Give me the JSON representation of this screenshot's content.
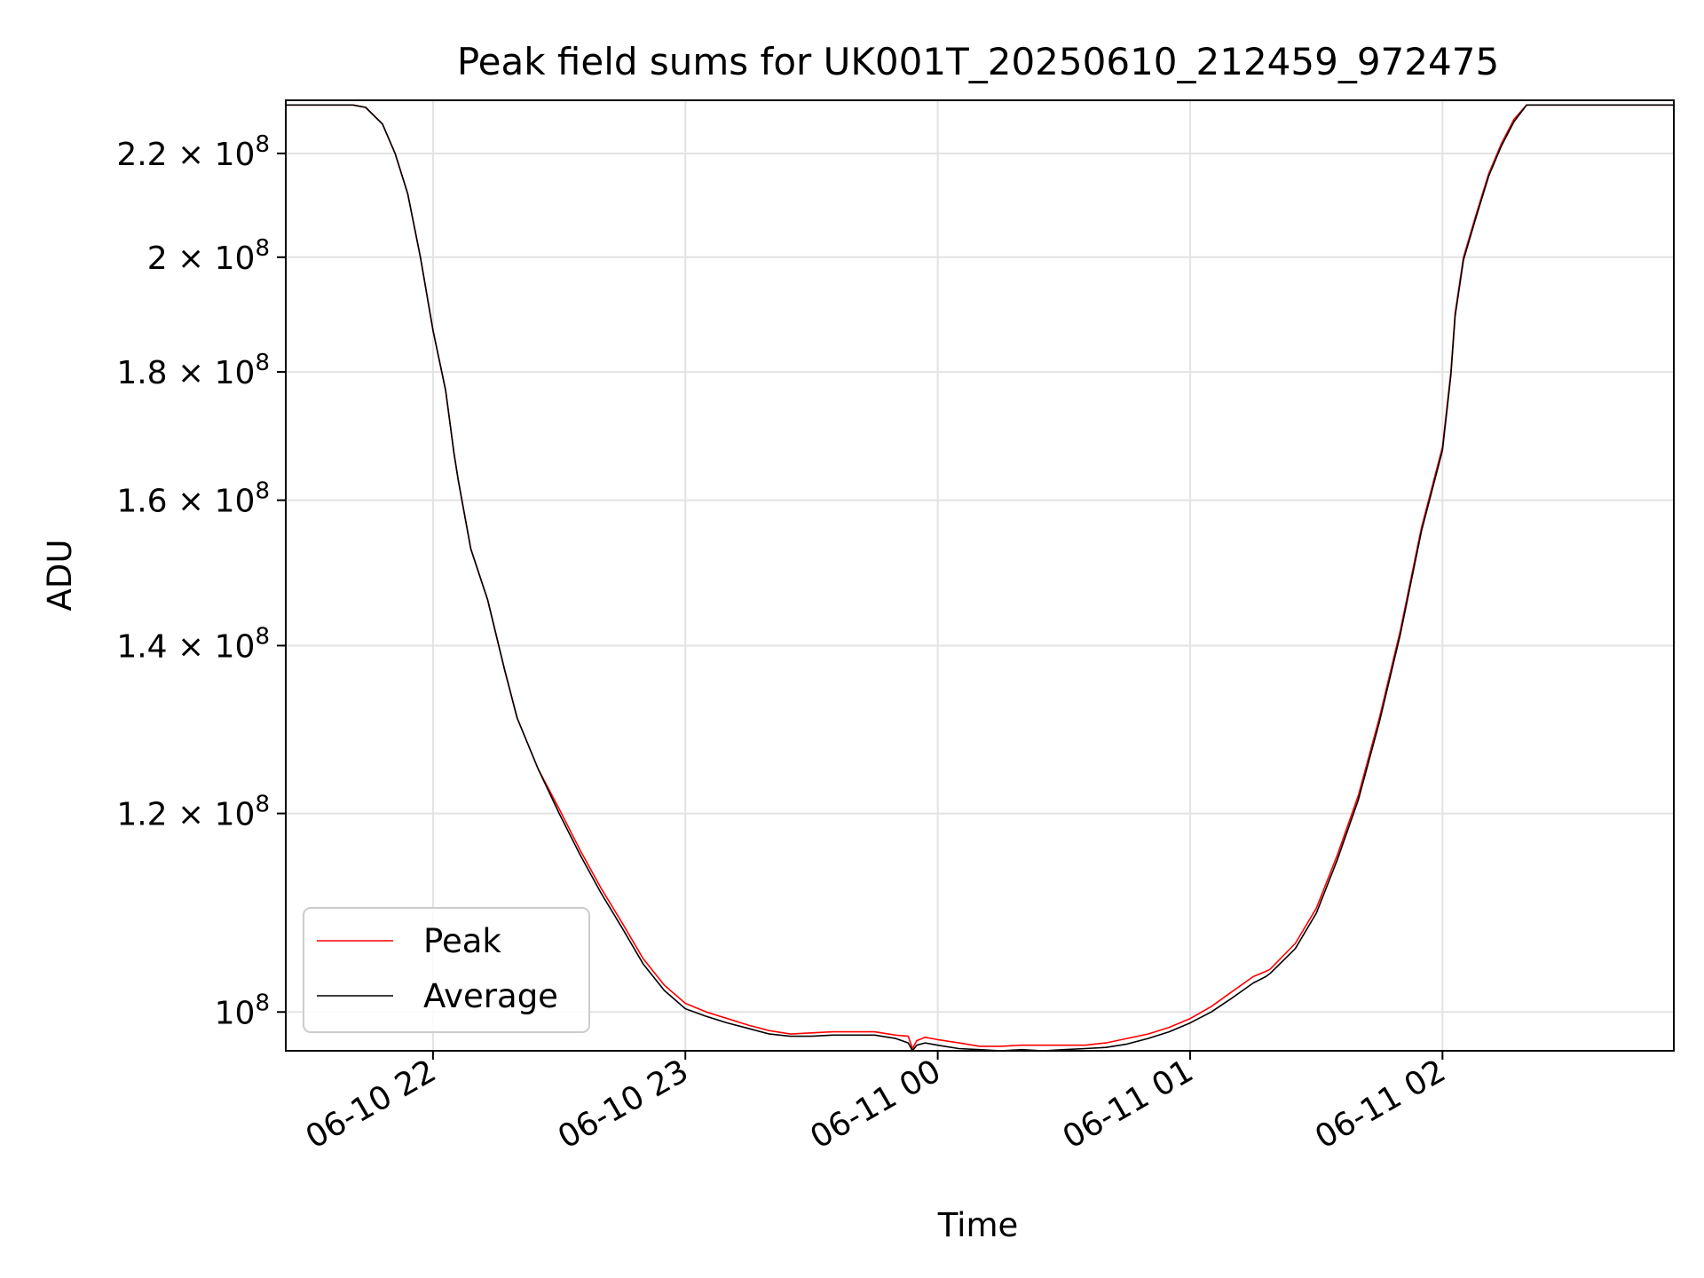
{
  "chart_data": {
    "type": "line",
    "title": "Peak field sums for UK001T_20250610_212459_972475",
    "xlabel": "Time",
    "ylabel": "ADU",
    "y_scale": "log",
    "grid": true,
    "legend_position": "lower-left",
    "xlim": [
      "2025-06-10 21:25",
      "2025-06-11 02:55"
    ],
    "ylim": [
      96500000,
      231000000
    ],
    "x_ticks": [
      {
        "value": "2025-06-10 22:00",
        "label": "06-10 22"
      },
      {
        "value": "2025-06-10 23:00",
        "label": "06-10 23"
      },
      {
        "value": "2025-06-11 00:00",
        "label": "06-11 00"
      },
      {
        "value": "2025-06-11 01:00",
        "label": "06-11 01"
      },
      {
        "value": "2025-06-11 02:00",
        "label": "06-11 02"
      }
    ],
    "y_ticks": [
      {
        "value": 100000000,
        "mant": "10",
        "exp": "8"
      },
      {
        "value": 120000000,
        "mant": "1.2 × 10",
        "exp": "8"
      },
      {
        "value": 140000000,
        "mant": "1.4 × 10",
        "exp": "8"
      },
      {
        "value": 160000000,
        "mant": "1.6 × 10",
        "exp": "8"
      },
      {
        "value": 180000000,
        "mant": "1.8 × 10",
        "exp": "8"
      },
      {
        "value": 200000000,
        "mant": "2 × 10",
        "exp": "8"
      },
      {
        "value": 220000000,
        "mant": "2.2 × 10",
        "exp": "8"
      }
    ],
    "series": [
      {
        "name": "Peak",
        "color": "#ff0000",
        "x": [
          "2025-06-10 21:25",
          "2025-06-10 21:41",
          "2025-06-10 21:44",
          "2025-06-10 21:48",
          "2025-06-10 21:51",
          "2025-06-10 21:54",
          "2025-06-10 21:57",
          "2025-06-10 22:00",
          "2025-06-10 22:03",
          "2025-06-10 22:05",
          "2025-06-10 22:06",
          "2025-06-10 22:09",
          "2025-06-10 22:13",
          "2025-06-10 22:17",
          "2025-06-10 22:20",
          "2025-06-10 22:25",
          "2025-06-10 22:30",
          "2025-06-10 22:35",
          "2025-06-10 22:40",
          "2025-06-10 22:45",
          "2025-06-10 22:50",
          "2025-06-10 22:55",
          "2025-06-10 23:00",
          "2025-06-10 23:05",
          "2025-06-10 23:10",
          "2025-06-10 23:15",
          "2025-06-10 23:20",
          "2025-06-10 23:25",
          "2025-06-10 23:30",
          "2025-06-10 23:35",
          "2025-06-10 23:40",
          "2025-06-10 23:45",
          "2025-06-10 23:50",
          "2025-06-10 23:53",
          "2025-06-10 23:54",
          "2025-06-10 23:55",
          "2025-06-10 23:57",
          "2025-06-11 00:00",
          "2025-06-11 00:05",
          "2025-06-11 00:10",
          "2025-06-11 00:15",
          "2025-06-11 00:20",
          "2025-06-11 00:25",
          "2025-06-11 00:30",
          "2025-06-11 00:35",
          "2025-06-11 00:40",
          "2025-06-11 00:45",
          "2025-06-11 00:50",
          "2025-06-11 00:55",
          "2025-06-11 01:00",
          "2025-06-11 01:05",
          "2025-06-11 01:10",
          "2025-06-11 01:15",
          "2025-06-11 01:18",
          "2025-06-11 01:19",
          "2025-06-11 01:25",
          "2025-06-11 01:30",
          "2025-06-11 01:35",
          "2025-06-11 01:40",
          "2025-06-11 01:45",
          "2025-06-11 01:50",
          "2025-06-11 01:55",
          "2025-06-11 02:00",
          "2025-06-11 02:02",
          "2025-06-11 02:03",
          "2025-06-11 02:05",
          "2025-06-11 02:08",
          "2025-06-11 02:11",
          "2025-06-11 02:14",
          "2025-06-11 02:17",
          "2025-06-11 02:20",
          "2025-06-11 02:25",
          "2025-06-11 02:55"
        ],
        "values": [
          230000000,
          230000000,
          229500000,
          226000000,
          220000000,
          212000000,
          200000000,
          187000000,
          177000000,
          167000000,
          163000000,
          153000000,
          146000000,
          137000000,
          131000000,
          125000000,
          120500000,
          116000000,
          112000000,
          108500000,
          105000000,
          102500000,
          100800000,
          100000000,
          99400000,
          98800000,
          98300000,
          98000000,
          98100000,
          98200000,
          98200000,
          98200000,
          97900000,
          97800000,
          96700000,
          97400000,
          97700000,
          97500000,
          97200000,
          96900000,
          96900000,
          97000000,
          97000000,
          97000000,
          97000000,
          97200000,
          97600000,
          98000000,
          98600000,
          99400000,
          100500000,
          101900000,
          103300000,
          103800000,
          104000000,
          106500000,
          110000000,
          115500000,
          122000000,
          131000000,
          142000000,
          156000000,
          168000000,
          180000000,
          190000000,
          200000000,
          208000000,
          216000000,
          222000000,
          227000000,
          230000000,
          230000000,
          230000000
        ]
      },
      {
        "name": "Average",
        "color": "#000000",
        "x": [
          "2025-06-10 21:25",
          "2025-06-10 21:41",
          "2025-06-10 21:44",
          "2025-06-10 21:48",
          "2025-06-10 21:51",
          "2025-06-10 21:54",
          "2025-06-10 21:57",
          "2025-06-10 22:00",
          "2025-06-10 22:03",
          "2025-06-10 22:05",
          "2025-06-10 22:06",
          "2025-06-10 22:09",
          "2025-06-10 22:13",
          "2025-06-10 22:17",
          "2025-06-10 22:20",
          "2025-06-10 22:25",
          "2025-06-10 22:30",
          "2025-06-10 22:35",
          "2025-06-10 22:40",
          "2025-06-10 22:45",
          "2025-06-10 22:50",
          "2025-06-10 22:55",
          "2025-06-10 23:00",
          "2025-06-10 23:05",
          "2025-06-10 23:10",
          "2025-06-10 23:15",
          "2025-06-10 23:20",
          "2025-06-10 23:25",
          "2025-06-10 23:30",
          "2025-06-10 23:35",
          "2025-06-10 23:40",
          "2025-06-10 23:45",
          "2025-06-10 23:50",
          "2025-06-10 23:53",
          "2025-06-10 23:54",
          "2025-06-10 23:55",
          "2025-06-10 23:57",
          "2025-06-11 00:00",
          "2025-06-11 00:05",
          "2025-06-11 00:10",
          "2025-06-11 00:15",
          "2025-06-11 00:20",
          "2025-06-11 00:25",
          "2025-06-11 00:30",
          "2025-06-11 00:35",
          "2025-06-11 00:40",
          "2025-06-11 00:45",
          "2025-06-11 00:50",
          "2025-06-11 00:55",
          "2025-06-11 01:00",
          "2025-06-11 01:05",
          "2025-06-11 01:10",
          "2025-06-11 01:15",
          "2025-06-11 01:18",
          "2025-06-11 01:19",
          "2025-06-11 01:25",
          "2025-06-11 01:30",
          "2025-06-11 01:35",
          "2025-06-11 01:40",
          "2025-06-11 01:45",
          "2025-06-11 01:50",
          "2025-06-11 01:55",
          "2025-06-11 02:00",
          "2025-06-11 02:02",
          "2025-06-11 02:03",
          "2025-06-11 02:05",
          "2025-06-11 02:08",
          "2025-06-11 02:11",
          "2025-06-11 02:14",
          "2025-06-11 02:17",
          "2025-06-11 02:20",
          "2025-06-11 02:25",
          "2025-06-11 02:55"
        ],
        "values": [
          230000000,
          230000000,
          229500000,
          226000000,
          220000000,
          212000000,
          200000000,
          187000000,
          177000000,
          167000000,
          163000000,
          153000000,
          146000000,
          137000000,
          131000000,
          125000000,
          120000000,
          115500000,
          111500000,
          108000000,
          104500000,
          102000000,
          100300000,
          99600000,
          99000000,
          98500000,
          98000000,
          97800000,
          97800000,
          97900000,
          97900000,
          97900000,
          97600000,
          97200000,
          96500000,
          97000000,
          97200000,
          97000000,
          96700000,
          96600000,
          96500000,
          96600000,
          96500000,
          96600000,
          96700000,
          96800000,
          97100000,
          97600000,
          98200000,
          99000000,
          100000000,
          101300000,
          102700000,
          103300000,
          103600000,
          106000000,
          109500000,
          115000000,
          121500000,
          130500000,
          141500000,
          155500000,
          167500000,
          179500000,
          189500000,
          199500000,
          207500000,
          215500000,
          221500000,
          226500000,
          230000000,
          230000000,
          230000000
        ]
      }
    ]
  }
}
